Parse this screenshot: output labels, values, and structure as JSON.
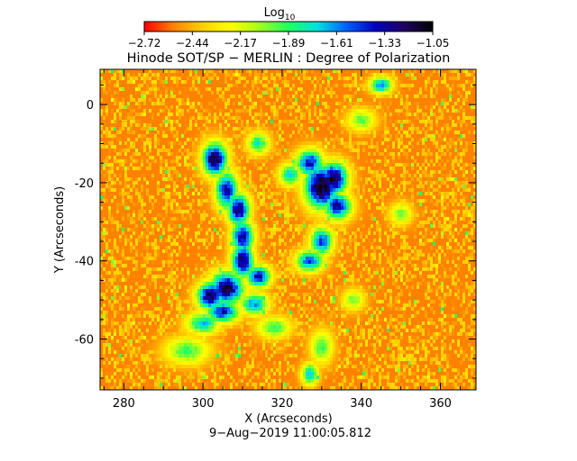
{
  "chart_data": {
    "type": "heatmap",
    "title": "Hinode SOT/SP − MERLIN : Degree of Polarization",
    "xlabel": "X (Arcseconds)",
    "ylabel": "Y (Arcseconds)",
    "timestamp": "9−Aug−2019 11:00:05.812",
    "xlim": [
      274,
      369
    ],
    "ylim": [
      -73,
      9
    ],
    "x_ticks": [
      280,
      300,
      320,
      340,
      360
    ],
    "y_ticks": [
      0,
      -20,
      -40,
      -60
    ],
    "colorbar": {
      "label_base": "Log",
      "label_sub": "10",
      "range": [
        -2.72,
        -1.05
      ],
      "ticks": [
        "−2.72",
        "−2.44",
        "−2.17",
        "−1.89",
        "−1.61",
        "−1.33",
        "−1.05"
      ],
      "colors": [
        "#ff0000",
        "#ff8000",
        "#ffd000",
        "#ffff00",
        "#a0ff20",
        "#20ff60",
        "#00e0e0",
        "#0060ff",
        "#0000c0",
        "#200060",
        "#000000"
      ]
    },
    "background_level": -2.55,
    "features": [
      {
        "x": 303,
        "y": -14,
        "sx": 2.2,
        "sy": 3,
        "level": -1.15
      },
      {
        "x": 306,
        "y": -22,
        "sx": 2,
        "sy": 3.5,
        "level": -1.35
      },
      {
        "x": 309,
        "y": -27,
        "sx": 2,
        "sy": 3,
        "level": -1.25
      },
      {
        "x": 310,
        "y": -34,
        "sx": 2,
        "sy": 3,
        "level": -1.3
      },
      {
        "x": 310,
        "y": -40,
        "sx": 2,
        "sy": 3,
        "level": -1.2
      },
      {
        "x": 314,
        "y": -44,
        "sx": 2.2,
        "sy": 2,
        "level": -1.35
      },
      {
        "x": 306,
        "y": -47,
        "sx": 3,
        "sy": 3,
        "level": -1.15
      },
      {
        "x": 302,
        "y": -49,
        "sx": 2.5,
        "sy": 2.5,
        "level": -1.2
      },
      {
        "x": 305,
        "y": -53,
        "sx": 3,
        "sy": 2,
        "level": -1.4
      },
      {
        "x": 300,
        "y": -56,
        "sx": 3,
        "sy": 2,
        "level": -1.7
      },
      {
        "x": 313,
        "y": -51,
        "sx": 2.5,
        "sy": 2,
        "level": -1.6
      },
      {
        "x": 330,
        "y": -21,
        "sx": 3,
        "sy": 4,
        "level": -1.05
      },
      {
        "x": 333,
        "y": -19,
        "sx": 2.5,
        "sy": 3,
        "level": -1.15
      },
      {
        "x": 327,
        "y": -15,
        "sx": 2.5,
        "sy": 2.5,
        "level": -1.4
      },
      {
        "x": 334,
        "y": -26,
        "sx": 2.5,
        "sy": 2.5,
        "level": -1.35
      },
      {
        "x": 322,
        "y": -18,
        "sx": 2,
        "sy": 2,
        "level": -1.7
      },
      {
        "x": 330,
        "y": -35,
        "sx": 2,
        "sy": 2.5,
        "level": -1.45
      },
      {
        "x": 327,
        "y": -40,
        "sx": 2.5,
        "sy": 2,
        "level": -1.5
      },
      {
        "x": 314,
        "y": -10,
        "sx": 2,
        "sy": 2,
        "level": -1.8
      },
      {
        "x": 345,
        "y": 5,
        "sx": 2,
        "sy": 1.5,
        "level": -1.6
      },
      {
        "x": 296,
        "y": -63,
        "sx": 4,
        "sy": 2.5,
        "level": -1.9
      },
      {
        "x": 330,
        "y": -62,
        "sx": 2,
        "sy": 3,
        "level": -1.9
      },
      {
        "x": 318,
        "y": -57,
        "sx": 3,
        "sy": 2,
        "level": -1.9
      },
      {
        "x": 338,
        "y": -50,
        "sx": 2,
        "sy": 2,
        "level": -2.0
      },
      {
        "x": 350,
        "y": -28,
        "sx": 2,
        "sy": 2,
        "level": -2.0
      },
      {
        "x": 327,
        "y": -69,
        "sx": 1.5,
        "sy": 2,
        "level": -1.7
      },
      {
        "x": 340,
        "y": -4,
        "sx": 2.5,
        "sy": 2,
        "level": -1.95
      }
    ]
  }
}
